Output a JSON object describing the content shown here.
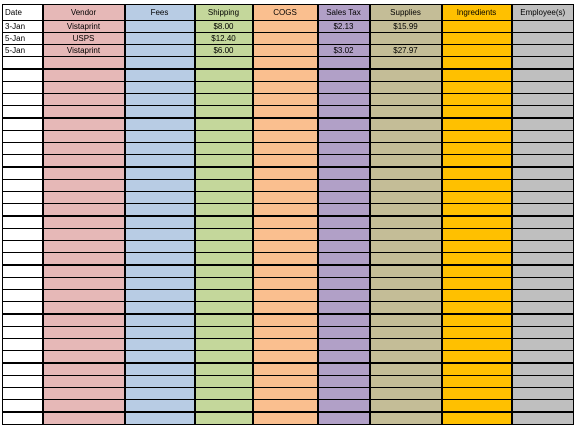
{
  "headers": [
    "Date",
    "Vendor",
    "Fees",
    "Shipping",
    "COGS",
    "Sales Tax",
    "Supplies",
    "Ingredients",
    "Employee(s)"
  ],
  "rows": [
    [
      "3-Jan",
      "Vistaprint",
      "",
      "$8.00",
      "",
      "$2.13",
      "$15.99",
      "",
      ""
    ],
    [
      "5-Jan",
      "USPS",
      "",
      "$12.40",
      "",
      "",
      "",
      "",
      ""
    ],
    [
      "5-Jan",
      "Vistaprint",
      "",
      "$6.00",
      "",
      "$3.02",
      "$27.97",
      "",
      ""
    ]
  ],
  "empty_row_count": 30,
  "column_colors": [
    "#ffffff",
    "#e6b8b7",
    "#b8cce4",
    "#c4d79b",
    "#fabf8f",
    "#b1a0c7",
    "#c4bd97",
    "#ffc000",
    "#bfbfbf"
  ]
}
